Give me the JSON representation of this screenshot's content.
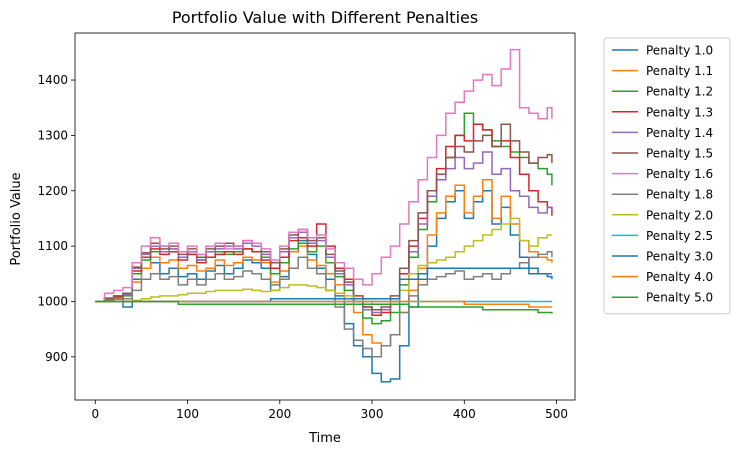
{
  "chart_data": {
    "type": "line",
    "title": "Portfolio Value with Different Penalties",
    "xlabel": "Time",
    "ylabel": "Portfolio Value",
    "xlim": [
      -22,
      520
    ],
    "ylim": [
      822,
      1485
    ],
    "xticks": [
      0,
      100,
      200,
      300,
      400,
      500
    ],
    "yticks": [
      900,
      1000,
      1100,
      1200,
      1300,
      1400
    ],
    "grid": false,
    "legend_position": "outside-right",
    "x": [
      0,
      10,
      20,
      30,
      40,
      50,
      60,
      70,
      80,
      90,
      100,
      110,
      120,
      130,
      140,
      150,
      160,
      170,
      180,
      190,
      200,
      210,
      220,
      230,
      240,
      250,
      260,
      270,
      280,
      290,
      300,
      310,
      320,
      330,
      340,
      350,
      360,
      370,
      380,
      390,
      400,
      410,
      420,
      430,
      440,
      450,
      460,
      470,
      480,
      490,
      495
    ],
    "series": [
      {
        "name": "Penalty 1.0",
        "color": "#1f77b4",
        "values": [
          1000,
          1003,
          1005,
          990,
          1040,
          1060,
          1070,
          1050,
          1060,
          1045,
          1050,
          1040,
          1055,
          1065,
          1050,
          1060,
          1075,
          1070,
          1060,
          1020,
          1045,
          1090,
          1110,
          1085,
          1060,
          1040,
          1010,
          960,
          920,
          900,
          870,
          855,
          860,
          920,
          990,
          1040,
          1100,
          1150,
          1180,
          1200,
          1150,
          1180,
          1200,
          1140,
          1170,
          1120,
          1080,
          1060,
          1050,
          1045,
          1040
        ]
      },
      {
        "name": "Penalty 1.1",
        "color": "#ff7f0e",
        "values": [
          1000,
          1003,
          1005,
          1000,
          1035,
          1060,
          1080,
          1070,
          1075,
          1060,
          1065,
          1055,
          1060,
          1075,
          1065,
          1070,
          1080,
          1075,
          1070,
          1035,
          1055,
          1090,
          1100,
          1075,
          1065,
          1050,
          1030,
          1000,
          980,
          940,
          925,
          920,
          940,
          980,
          1020,
          1060,
          1120,
          1160,
          1190,
          1210,
          1160,
          1190,
          1220,
          1150,
          1190,
          1140,
          1110,
          1090,
          1080,
          1075,
          1070
        ]
      },
      {
        "name": "Penalty 1.2",
        "color": "#2ca02c",
        "values": [
          1000,
          1005,
          1008,
          1010,
          1050,
          1075,
          1090,
          1100,
          1095,
          1080,
          1085,
          1075,
          1080,
          1090,
          1085,
          1090,
          1095,
          1090,
          1080,
          1050,
          1070,
          1095,
          1105,
          1090,
          1100,
          1070,
          1045,
          1020,
          1000,
          970,
          960,
          965,
          980,
          1030,
          1080,
          1130,
          1180,
          1220,
          1260,
          1300,
          1340,
          1320,
          1310,
          1290,
          1280,
          1270,
          1260,
          1250,
          1240,
          1230,
          1210
        ]
      },
      {
        "name": "Penalty 1.3",
        "color": "#d62728",
        "values": [
          1000,
          1005,
          1008,
          1015,
          1055,
          1080,
          1095,
          1085,
          1090,
          1075,
          1085,
          1070,
          1080,
          1085,
          1090,
          1085,
          1095,
          1090,
          1075,
          1060,
          1080,
          1110,
          1115,
          1100,
          1140,
          1100,
          1060,
          1040,
          1010,
          990,
          975,
          980,
          1000,
          1050,
          1100,
          1150,
          1200,
          1240,
          1280,
          1300,
          1290,
          1320,
          1310,
          1280,
          1290,
          1260,
          1230,
          1200,
          1180,
          1170,
          1155
        ]
      },
      {
        "name": "Penalty 1.4",
        "color": "#9467bd",
        "values": [
          1000,
          1006,
          1010,
          1012,
          1060,
          1085,
          1100,
          1090,
          1095,
          1080,
          1090,
          1075,
          1090,
          1095,
          1100,
          1095,
          1105,
          1100,
          1085,
          1070,
          1090,
          1115,
          1125,
          1105,
          1110,
          1080,
          1050,
          1030,
          1000,
          985,
          980,
          985,
          1000,
          1040,
          1090,
          1140,
          1190,
          1220,
          1240,
          1260,
          1240,
          1250,
          1270,
          1230,
          1240,
          1200,
          1190,
          1170,
          1160,
          1170,
          1165
        ]
      },
      {
        "name": "Penalty 1.5",
        "color": "#8c564b",
        "values": [
          1000,
          1006,
          1010,
          1015,
          1062,
          1088,
          1105,
          1095,
          1100,
          1085,
          1095,
          1080,
          1095,
          1100,
          1105,
          1100,
          1110,
          1105,
          1090,
          1070,
          1095,
          1120,
          1130,
          1110,
          1115,
          1085,
          1055,
          1035,
          1005,
          990,
          985,
          990,
          1010,
          1060,
          1110,
          1160,
          1200,
          1230,
          1260,
          1280,
          1270,
          1290,
          1300,
          1280,
          1320,
          1290,
          1270,
          1250,
          1260,
          1265,
          1250
        ]
      },
      {
        "name": "Penalty 1.6",
        "color": "#e377c2",
        "values": [
          1000,
          1015,
          1020,
          1025,
          1070,
          1100,
          1115,
          1100,
          1105,
          1090,
          1100,
          1085,
          1100,
          1105,
          1095,
          1100,
          1110,
          1105,
          1095,
          1075,
          1100,
          1125,
          1130,
          1115,
          1120,
          1095,
          1070,
          1060,
          1040,
          1030,
          1050,
          1080,
          1100,
          1140,
          1180,
          1220,
          1260,
          1300,
          1340,
          1360,
          1380,
          1400,
          1410,
          1390,
          1420,
          1455,
          1350,
          1340,
          1330,
          1350,
          1330
        ]
      },
      {
        "name": "Penalty 1.8",
        "color": "#7f7f7f",
        "values": [
          1000,
          1002,
          1004,
          1005,
          1020,
          1040,
          1050,
          1040,
          1045,
          1030,
          1040,
          1030,
          1040,
          1050,
          1040,
          1045,
          1055,
          1050,
          1040,
          1030,
          1040,
          1060,
          1080,
          1060,
          1050,
          1020,
          990,
          950,
          930,
          915,
          900,
          920,
          940,
          980,
          1010,
          1030,
          1040,
          1045,
          1050,
          1055,
          1040,
          1045,
          1050,
          1040,
          1050,
          1060,
          1070,
          1080,
          1085,
          1090,
          1080
        ]
      },
      {
        "name": "Penalty 2.0",
        "color": "#bcbd22",
        "values": [
          1000,
          1000,
          1000,
          1000,
          1002,
          1005,
          1008,
          1010,
          1010,
          1012,
          1015,
          1015,
          1018,
          1020,
          1020,
          1020,
          1022,
          1020,
          1018,
          1020,
          1025,
          1030,
          1030,
          1028,
          1025,
          1020,
          1015,
          1010,
          1005,
          1000,
          995,
          995,
          1000,
          1020,
          1050,
          1065,
          1070,
          1075,
          1080,
          1090,
          1100,
          1110,
          1120,
          1130,
          1140,
          1150,
          1110,
          1100,
          1115,
          1120,
          1120
        ]
      },
      {
        "name": "Penalty 2.5",
        "color": "#17becf",
        "values": [
          1000,
          1000,
          1000,
          1000,
          1000,
          1000,
          1000,
          1000,
          1000,
          1000,
          1000,
          1000,
          1000,
          1000,
          1000,
          1000,
          1000,
          1000,
          1000,
          1000,
          1000,
          1000,
          1000,
          1000,
          1000,
          1000,
          1000,
          1000,
          1000,
          1000,
          1000,
          1000,
          1000,
          1000,
          1000,
          1000,
          1000,
          1000,
          1000,
          1000,
          1000,
          1000,
          1000,
          1000,
          1000,
          1000,
          1000,
          1000,
          1000,
          1000,
          1000
        ]
      },
      {
        "name": "Penalty 3.0",
        "color": "#1f77b4",
        "values": [
          1000,
          1000,
          1000,
          1000,
          1000,
          1000,
          1000,
          1000,
          1000,
          1000,
          1000,
          1000,
          1000,
          1000,
          1000,
          1000,
          1000,
          1000,
          1000,
          1005,
          1005,
          1005,
          1005,
          1005,
          1005,
          1005,
          1005,
          1005,
          1005,
          1005,
          1005,
          1005,
          1005,
          1040,
          1040,
          1050,
          1060,
          1060,
          1060,
          1060,
          1060,
          1060,
          1060,
          1060,
          1060,
          1060,
          1060,
          1050,
          1050,
          1050,
          1050
        ]
      },
      {
        "name": "Penalty 4.0",
        "color": "#ff7f0e",
        "values": [
          1000,
          1000,
          1000,
          1000,
          1000,
          1000,
          1000,
          1000,
          1000,
          1000,
          1000,
          1000,
          1000,
          1000,
          1000,
          1000,
          1000,
          1000,
          1000,
          1000,
          1000,
          1000,
          1000,
          1000,
          1000,
          1000,
          1000,
          1000,
          1000,
          1000,
          1000,
          1000,
          1000,
          1000,
          1000,
          1000,
          1000,
          1000,
          1000,
          1000,
          995,
          995,
          995,
          995,
          995,
          995,
          995,
          990,
          990,
          990,
          990
        ]
      },
      {
        "name": "Penalty 5.0",
        "color": "#2ca02c",
        "values": [
          1000,
          1000,
          1000,
          1000,
          1000,
          1000,
          1000,
          1000,
          1000,
          995,
          995,
          995,
          995,
          995,
          995,
          995,
          995,
          995,
          995,
          995,
          995,
          995,
          995,
          995,
          995,
          995,
          995,
          995,
          995,
          995,
          995,
          995,
          995,
          995,
          990,
          990,
          990,
          990,
          990,
          990,
          990,
          990,
          985,
          985,
          985,
          985,
          985,
          985,
          980,
          980,
          978
        ]
      }
    ]
  }
}
